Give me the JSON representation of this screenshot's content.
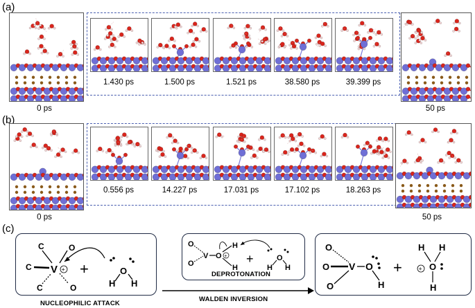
{
  "panels": {
    "a": {
      "label": "(a)",
      "start_time": "0 ps",
      "end_time": "50 ps",
      "snapshots": [
        "1.430 ps",
        "1.500 ps",
        "1.521 ps",
        "38.580 ps",
        "39.399 ps"
      ]
    },
    "b": {
      "label": "(b)",
      "start_time": "0 ps",
      "end_time": "50 ps",
      "snapshots": [
        "0.556 ps",
        "14.227 ps",
        "17.031 ps",
        "17.102 ps",
        "18.263 ps"
      ]
    },
    "c": {
      "label": "(c)",
      "nucleophilic_caption": "NUCLEOPHILIC ATTACK",
      "deprotonation_caption": "DEPROTONATION",
      "walden_caption": "WALDEN INVERSION"
    }
  },
  "colors": {
    "vanadium": "#6f6fd6",
    "oxygen": "#d9251c",
    "hydrogen": "#f3d5d5",
    "carbon": "#8a5a1a",
    "box_border": "#1f2a44",
    "dash_border": "#4a5fb0"
  }
}
